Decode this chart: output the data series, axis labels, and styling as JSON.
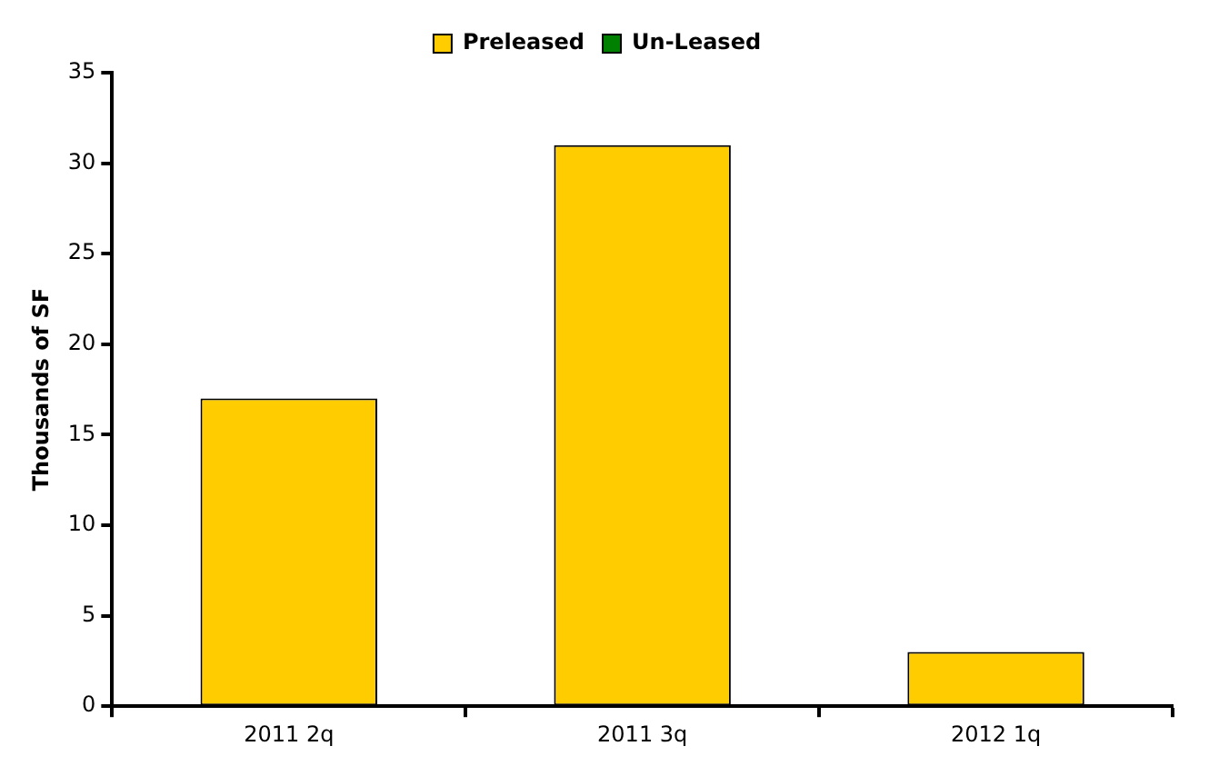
{
  "chart_data": {
    "type": "bar",
    "ylabel": "Thousands of SF",
    "categories": [
      "2011 2q",
      "2011 3q",
      "2012 1q"
    ],
    "series": [
      {
        "name": "Preleased",
        "color": "#ffcc00",
        "values": [
          17,
          31,
          3
        ]
      },
      {
        "name": "Un-Leased",
        "color": "#008000",
        "values": [
          null,
          null,
          null
        ]
      }
    ],
    "stacked": true,
    "ylim": [
      0,
      35
    ],
    "yticks": [
      0,
      5,
      10,
      15,
      20,
      25,
      30,
      35
    ],
    "grid": false,
    "legend": "top"
  }
}
